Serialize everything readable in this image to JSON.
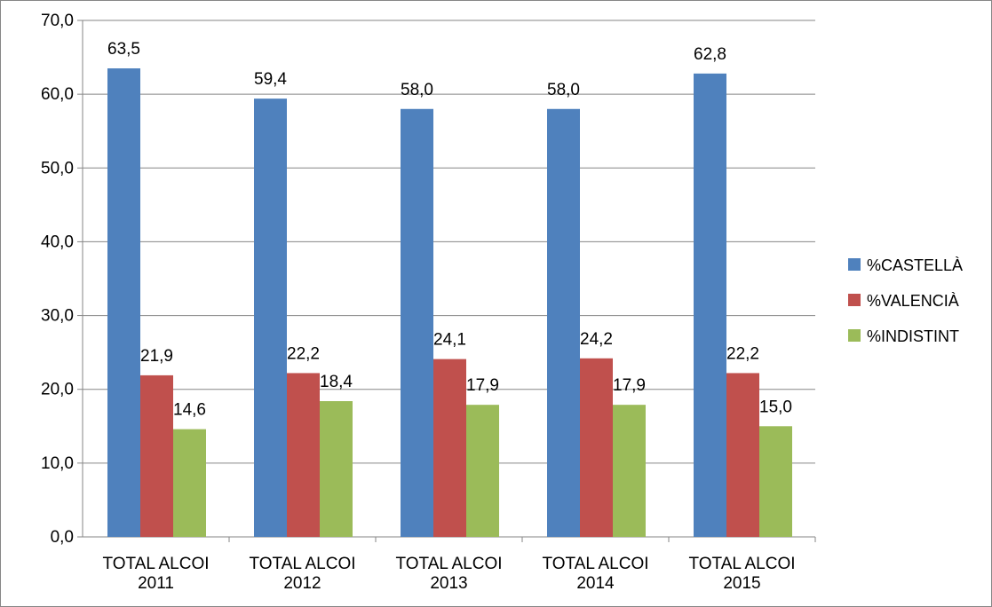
{
  "chart_data": {
    "type": "bar",
    "title": "",
    "xlabel": "",
    "ylabel": "",
    "ylim": [
      0,
      70
    ],
    "yticks": [
      "0,0",
      "10,0",
      "20,0",
      "30,0",
      "40,0",
      "50,0",
      "60,0",
      "70,0"
    ],
    "grid": true,
    "legend_position": "right",
    "categories": [
      [
        "TOTAL ALCOI",
        "2011"
      ],
      [
        "TOTAL ALCOI",
        "2012"
      ],
      [
        "TOTAL ALCOI",
        "2013"
      ],
      [
        "TOTAL ALCOI",
        "2014"
      ],
      [
        "TOTAL ALCOI",
        "2015"
      ]
    ],
    "series": [
      {
        "name": "%CASTELLÀ",
        "color": "#4F81BD",
        "values": [
          63.5,
          59.4,
          58.0,
          58.0,
          62.8
        ],
        "labels": [
          "63,5",
          "59,4",
          "58,0",
          "58,0",
          "62,8"
        ]
      },
      {
        "name": "%VALENCIÀ",
        "color": "#C0504D",
        "values": [
          21.9,
          22.2,
          24.1,
          24.2,
          22.2
        ],
        "labels": [
          "21,9",
          "22,2",
          "24,1",
          "24,2",
          "22,2"
        ]
      },
      {
        "name": "%INDISTINT",
        "color": "#9BBB59",
        "values": [
          14.6,
          18.4,
          17.9,
          17.9,
          15.0
        ],
        "labels": [
          "14,6",
          "18,4",
          "17,9",
          "17,9",
          "15,0"
        ]
      }
    ]
  }
}
